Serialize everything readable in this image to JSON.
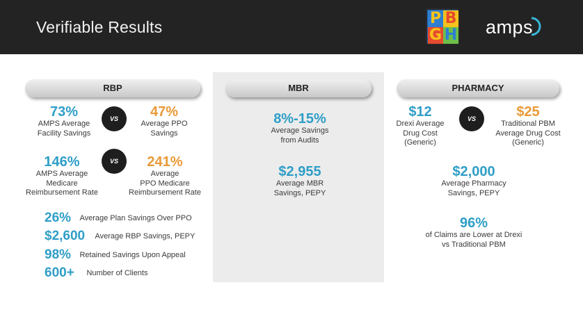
{
  "header": {
    "title": "Verifiable Results",
    "logo_pbgh_letters": [
      "P",
      "B",
      "G",
      "H"
    ],
    "logo_amps_text": "amps"
  },
  "colors": {
    "header_bg": "#232323",
    "stat_blue": "#2f9ec7",
    "stat_orange": "#e99a37",
    "vs_circle": "#1e1e1e",
    "mbr_panel_bg": "#ececec"
  },
  "rbp": {
    "heading": "RBP",
    "vs_label": "VS",
    "compare1": {
      "left_value": "73%",
      "left_desc": [
        "AMPS Average",
        "Facility Savings"
      ],
      "right_value": "47%",
      "right_desc": [
        "Average PPO",
        "Savings"
      ]
    },
    "compare2": {
      "left_value": "146%",
      "left_desc": [
        "AMPS Average",
        "Medicare",
        "Reimbursement Rate"
      ],
      "right_value": "241%",
      "right_desc": [
        "Average",
        "PPO Medicare",
        "Reimbursement Rate"
      ]
    },
    "list": [
      {
        "value": "26%",
        "label": "Average Plan Savings Over PPO"
      },
      {
        "value": "$2,600",
        "label": "Average RBP Savings, PEPY"
      },
      {
        "value": "98%",
        "label": "Retained Savings Upon Appeal"
      },
      {
        "value": "600+",
        "label": "Number of Clients"
      }
    ]
  },
  "mbr": {
    "heading": "MBR",
    "stat1": {
      "value": "8%-15%",
      "desc": [
        "Average Savings",
        "from Audits"
      ]
    },
    "stat2": {
      "value": "$2,955",
      "desc": [
        "Average MBR",
        "Savings, PEPY"
      ]
    }
  },
  "pharmacy": {
    "heading": "PHARMACY",
    "vs_label": "VS",
    "compare": {
      "left_value": "$12",
      "left_desc": [
        "Drexi Average",
        "Drug Cost",
        "(Generic)"
      ],
      "right_value": "$25",
      "right_desc": [
        "Traditional PBM",
        "Average Drug Cost",
        "(Generic)"
      ]
    },
    "stat1": {
      "value": "$2,000",
      "desc": [
        "Average Pharmacy",
        "Savings, PEPY"
      ]
    },
    "stat2": {
      "value": "96%",
      "desc": [
        "of Claims are Lower at Drexi",
        "vs Traditional PBM"
      ]
    }
  }
}
